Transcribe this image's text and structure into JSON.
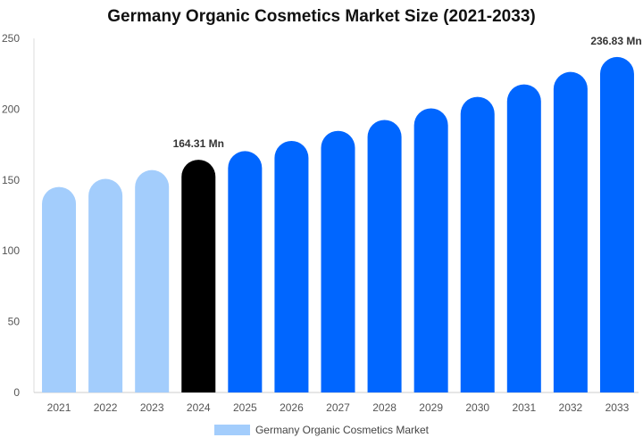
{
  "chart_data": {
    "type": "bar",
    "title": "Germany Organic Cosmetics Market Size (2021-2033)",
    "categories": [
      "2021",
      "2022",
      "2023",
      "2024",
      "2025",
      "2026",
      "2027",
      "2028",
      "2029",
      "2030",
      "2031",
      "2032",
      "2033"
    ],
    "series": [
      {
        "name": "Germany Organic Cosmetics Market",
        "values": [
          145.1,
          150.8,
          157.0,
          164.31,
          170.4,
          177.6,
          184.7,
          192.4,
          200.6,
          208.7,
          217.5,
          226.3,
          236.83
        ]
      }
    ],
    "ylim": [
      0,
      250
    ],
    "yticks": [
      0,
      50,
      100,
      150,
      200,
      250
    ],
    "grid": false,
    "legend": "bottom",
    "data_labels": {
      "2024": "164.31 Mn",
      "2033": "236.83 Mn"
    },
    "colors": {
      "historical": "#a3cdfc",
      "base_year": "#000000",
      "forecast": "#0066ff",
      "legend": "#a3cdfc"
    }
  }
}
